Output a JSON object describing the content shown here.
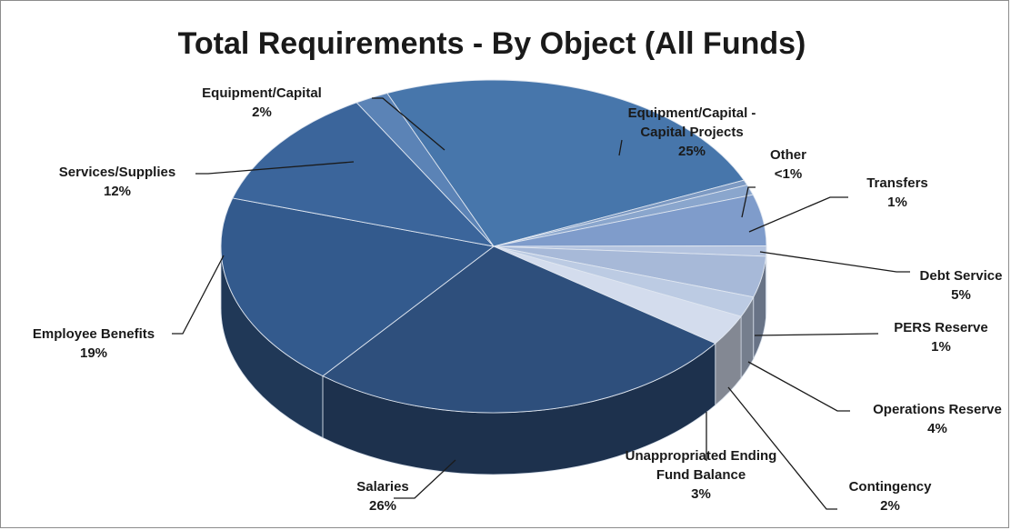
{
  "chart_data": {
    "type": "pie",
    "title": "Total Requirements - By Object (All Funds)",
    "slices": [
      {
        "lines": [
          "Equipment/Capital -",
          "Capital Projects"
        ],
        "pct": "25%",
        "value": 25,
        "color": "#4776ab"
      },
      {
        "lines": [
          "Other"
        ],
        "pct": "<1%",
        "value": 0.5,
        "color": "#7d9ac3"
      },
      {
        "lines": [
          "Transfers"
        ],
        "pct": "1%",
        "value": 1,
        "color": "#8aa6cd"
      },
      {
        "lines": [
          "Debt Service"
        ],
        "pct": "5%",
        "value": 5,
        "color": "#7f9ccb"
      },
      {
        "lines": [
          "PERS Reserve"
        ],
        "pct": "1%",
        "value": 1,
        "color": "#b3c3df"
      },
      {
        "lines": [
          "Operations Reserve"
        ],
        "pct": "4%",
        "value": 4,
        "color": "#a7b9d8"
      },
      {
        "lines": [
          "Contingency"
        ],
        "pct": "2%",
        "value": 2,
        "color": "#bccbe3"
      },
      {
        "lines": [
          "Unappropriated Ending",
          "Fund Balance"
        ],
        "pct": "3%",
        "value": 3,
        "color": "#d3dced"
      },
      {
        "lines": [
          "Salaries"
        ],
        "pct": "26%",
        "value": 26,
        "color": "#2e4f7c"
      },
      {
        "lines": [
          "Employee Benefits"
        ],
        "pct": "19%",
        "value": 19,
        "color": "#335a8d"
      },
      {
        "lines": [
          "Services/Supplies"
        ],
        "pct": "12%",
        "value": 12,
        "color": "#3b659b"
      },
      {
        "lines": [
          "Equipment/Capital"
        ],
        "pct": "2%",
        "value": 2,
        "color": "#5b83b6"
      }
    ]
  }
}
